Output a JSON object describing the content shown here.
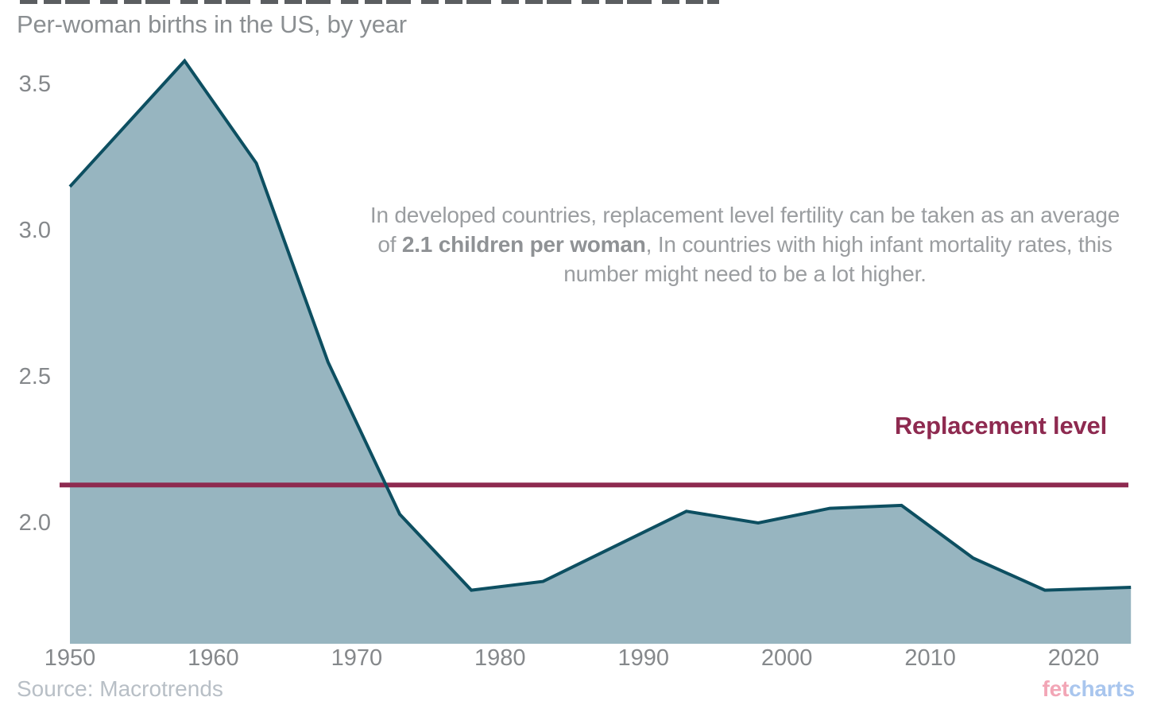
{
  "header": {
    "subtitle": "Per-woman births in the US, by year"
  },
  "annotation": {
    "pre": "In developed countries, replacement level fertility can be taken as an average of ",
    "bold": "2.1 children per woman",
    "post": ", In countries with high infant mortality rates, this number might need to be a lot higher."
  },
  "reference": {
    "label": "Replacement level",
    "value": 2.1
  },
  "footer": {
    "source": "Source: Macrotrends",
    "brand_fet": "fet",
    "brand_charts": "charts"
  },
  "colors": {
    "area_fill": "#97b5c0",
    "area_line": "#0d4f61",
    "reference_line": "#8e2a50",
    "tick_text": "#85888b",
    "annotation_text": "#9a9da0",
    "subtitle_text": "#8b8f92",
    "source_text": "#b8bfc6",
    "brand_fet": "#f2a6b6",
    "brand_charts": "#a9c6ee"
  },
  "chart_data": {
    "type": "area",
    "title": "Per-woman births in the US, by year",
    "xlabel": "",
    "ylabel": "",
    "grid": false,
    "legend": "none",
    "x": [
      1950,
      1958,
      1963,
      1968,
      1973,
      1978,
      1983,
      1993,
      1998,
      2003,
      2008,
      2013,
      2018,
      2024
    ],
    "values": [
      3.15,
      3.58,
      3.23,
      2.55,
      2.03,
      1.77,
      1.8,
      2.04,
      2.0,
      2.05,
      2.06,
      1.88,
      1.77,
      1.78
    ],
    "xlim": [
      1950,
      2024
    ],
    "ylim": [
      1.59,
      3.66
    ],
    "y_ticks": [
      {
        "label": "3.5",
        "value": 3.5
      },
      {
        "label": "3.0",
        "value": 3.0
      },
      {
        "label": "2.5",
        "value": 2.5
      },
      {
        "label": "2.0",
        "value": 2.0
      }
    ],
    "x_ticks": [
      {
        "label": "1950",
        "value": 1950
      },
      {
        "label": "1960",
        "value": 1960
      },
      {
        "label": "1970",
        "value": 1970
      },
      {
        "label": "1980",
        "value": 1980
      },
      {
        "label": "1990",
        "value": 1990
      },
      {
        "label": "2000",
        "value": 2000
      },
      {
        "label": "2010",
        "value": 2010
      },
      {
        "label": "2020",
        "value": 2020
      }
    ],
    "reference_line": {
      "label": "Replacement level",
      "value": 2.1,
      "plotted_at": 2.13
    },
    "source": "Source: Macrotrends"
  }
}
